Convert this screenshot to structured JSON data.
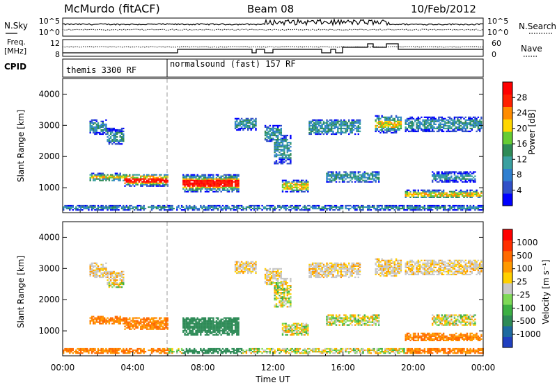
{
  "header": {
    "station": "McMurdo (fitACF)",
    "beam": "Beam 08",
    "date": "10/Feb/2012"
  },
  "summary_panel": {
    "left_labels": [
      "N.Sky",
      "Freq.",
      "[MHz]",
      "CPID"
    ],
    "right_labels": [
      "N.Search",
      "Nave"
    ],
    "nsky_ticks": [
      "10^5",
      "10^0"
    ],
    "nsearch_ticks": [
      "10^5",
      "10^0"
    ],
    "freq_ticks": [
      "12",
      "8"
    ],
    "nave_ticks": [
      "60",
      "0"
    ],
    "cpid_segments": [
      "themis 3300 RF",
      "normalsound (fast) 157 RF"
    ]
  },
  "chart_data": [
    {
      "type": "heatmap",
      "name": "power",
      "ylabel": "Slant Range [km]",
      "xlabel": "",
      "xlim": [
        0,
        24
      ],
      "ylim": [
        200,
        4500
      ],
      "yticks": [
        "1000",
        "2000",
        "3000",
        "4000"
      ],
      "colorbar": {
        "label": "Power [dB]",
        "ticks": [
          "28",
          "24",
          "20",
          "16",
          "12",
          "8",
          "4"
        ],
        "colors": [
          "#0000ff",
          "#3050c8",
          "#2f7fd0",
          "#3aa0a0",
          "#2e8b57",
          "#66cc33",
          "#ffd700",
          "#ff8c00",
          "#ff2000",
          "#ff0000"
        ]
      }
    },
    {
      "type": "heatmap",
      "name": "velocity",
      "ylabel": "Slant Range [km]",
      "xlabel": "Time UT",
      "xlim": [
        0,
        24
      ],
      "ylim": [
        200,
        4500
      ],
      "yticks": [
        "1000",
        "2000",
        "3000",
        "4000"
      ],
      "xticks": [
        "00:00",
        "04:00",
        "08:00",
        "12:00",
        "16:00",
        "20:00",
        "00:00"
      ],
      "colorbar": {
        "label": "Velocity [m s⁻¹]",
        "ticks": [
          "1000",
          "500",
          "100",
          "25",
          "-25",
          "-100",
          "-500",
          "-1000"
        ],
        "colors": [
          "#2040c0",
          "#1e6aa0",
          "#2e8b57",
          "#3cb043",
          "#7ed957",
          "#c8c8c8",
          "#ffd000",
          "#ff9900",
          "#ff6a00",
          "#ff3000",
          "#ff0000"
        ]
      }
    }
  ]
}
